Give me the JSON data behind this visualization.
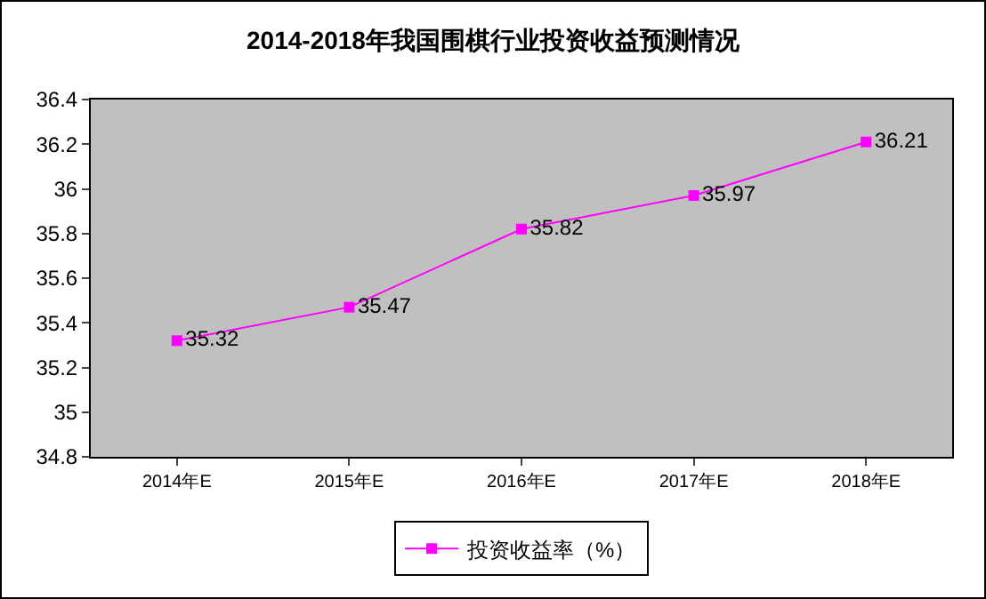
{
  "chart_data": {
    "type": "line",
    "title": "2014-2018年我国围棋行业投资收益预测情况",
    "categories": [
      "2014年E",
      "2015年E",
      "2016年E",
      "2017年E",
      "2018年E"
    ],
    "series": [
      {
        "name": "投资收益率（%）",
        "color": "#ff00ff",
        "values": [
          35.32,
          35.47,
          35.82,
          35.97,
          36.21
        ]
      }
    ],
    "ylim": [
      34.8,
      36.4
    ],
    "yticks": [
      34.8,
      35,
      35.2,
      35.4,
      35.6,
      35.8,
      36,
      36.2,
      36.4
    ],
    "data_labels": true,
    "marker": "square",
    "legend": "bottom",
    "grid": false
  }
}
